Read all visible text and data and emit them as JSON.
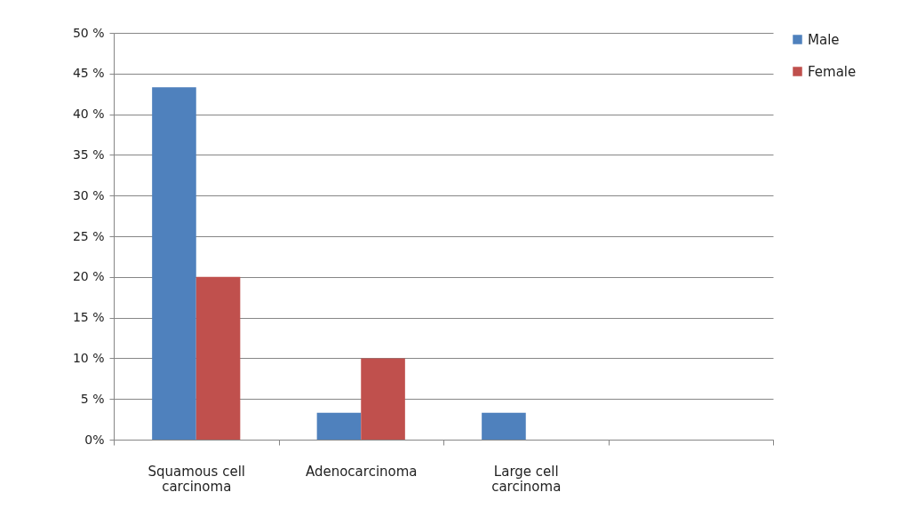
{
  "chart_data": {
    "type": "bar",
    "categories": [
      "Squamous cell carcinoma",
      "Adenocarcinoma",
      "Large cell carcinoma",
      null
    ],
    "series": [
      {
        "name": "Male",
        "color": "#4f81bd",
        "values": [
          43.3,
          3.3,
          3.3,
          null
        ]
      },
      {
        "name": "Female",
        "color": "#c0504d",
        "values": [
          20,
          10,
          null,
          null
        ]
      }
    ],
    "ylim": [
      0,
      50
    ],
    "yticks": [
      {
        "value": 0,
        "label": "0%"
      },
      {
        "value": 5,
        "label": "5 %"
      },
      {
        "value": 10,
        "label": "10 %"
      },
      {
        "value": 15,
        "label": "15 %"
      },
      {
        "value": 20,
        "label": "20 %"
      },
      {
        "value": 25,
        "label": "25 %"
      },
      {
        "value": 30,
        "label": "30 %"
      },
      {
        "value": 35,
        "label": "35 %"
      },
      {
        "value": 40,
        "label": "40 %"
      },
      {
        "value": 45,
        "label": "45 %"
      },
      {
        "value": 50,
        "label": "50 %"
      }
    ],
    "grid": "y",
    "legend": "right"
  }
}
